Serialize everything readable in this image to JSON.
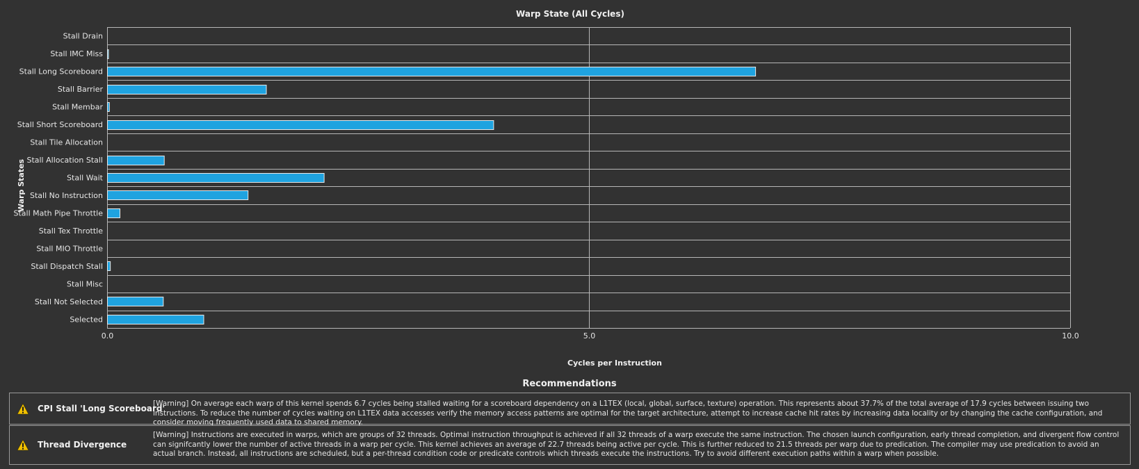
{
  "chart_data": {
    "type": "bar",
    "orientation": "horizontal",
    "title": "Warp State (All Cycles)",
    "xlabel": "Cycles per Instruction",
    "ylabel": "Warp States",
    "xlim": [
      0,
      10
    ],
    "xticks": [
      "0.0",
      "5.0",
      "10.0"
    ],
    "xtick_values": [
      0,
      5,
      10
    ],
    "grid": true,
    "bar_color": "#1fa3e0",
    "categories": [
      "Stall Drain",
      "Stall IMC Miss",
      "Stall Long Scoreboard",
      "Stall Barrier",
      "Stall Membar",
      "Stall Short Scoreboard",
      "Stall Tile Allocation",
      "Stall Allocation Stall",
      "Stall Wait",
      "Stall No Instruction",
      "Stall Math Pipe Throttle",
      "Stall Tex Throttle",
      "Stall MIO Throttle",
      "Stall Dispatch Stall",
      "Stall Misc",
      "Stall Not Selected",
      "Selected"
    ],
    "values": [
      0.0,
      0.01,
      6.73,
      1.65,
      0.02,
      4.01,
      0.0,
      0.59,
      2.25,
      1.46,
      0.13,
      0.0,
      0.0,
      0.03,
      0.0,
      0.58,
      1.0
    ]
  },
  "recommendations": {
    "title": "Recommendations",
    "warning_color": "#f0c000",
    "items": [
      {
        "icon": "warning-icon",
        "name": "CPI Stall 'Long Scoreboard'",
        "text": "[Warning] On average each warp of this kernel spends 6.7 cycles being stalled waiting for a scoreboard dependency on a L1TEX (local, global, surface, texture) operation. This represents about 37.7% of the total average of 17.9 cycles between issuing two instructions. To reduce the number of cycles waiting on L1TEX data accesses verify the memory access patterns are optimal for the target architecture, attempt to increase cache hit rates by increasing data locality or by changing the cache configuration, and consider moving frequently used data to shared memory."
      },
      {
        "icon": "warning-icon",
        "name": "Thread Divergence",
        "text": "[Warning] Instructions are executed in warps, which are groups of 32 threads. Optimal instruction throughput is achieved if all 32 threads of a warp execute the same instruction. The chosen launch configuration, early thread completion, and divergent flow control can signifcantly lower the number of active threads in a warp per cycle. This kernel achieves an average of 22.7 threads being active per cycle. This is further reduced to 21.5 threads per warp due to predication. The compiler may use predication to avoid an actual branch. Instead, all instructions are scheduled, but a per-thread condition code or predicate controls which threads execute the instructions. Try to avoid different execution paths within a warp when possible."
      }
    ]
  }
}
